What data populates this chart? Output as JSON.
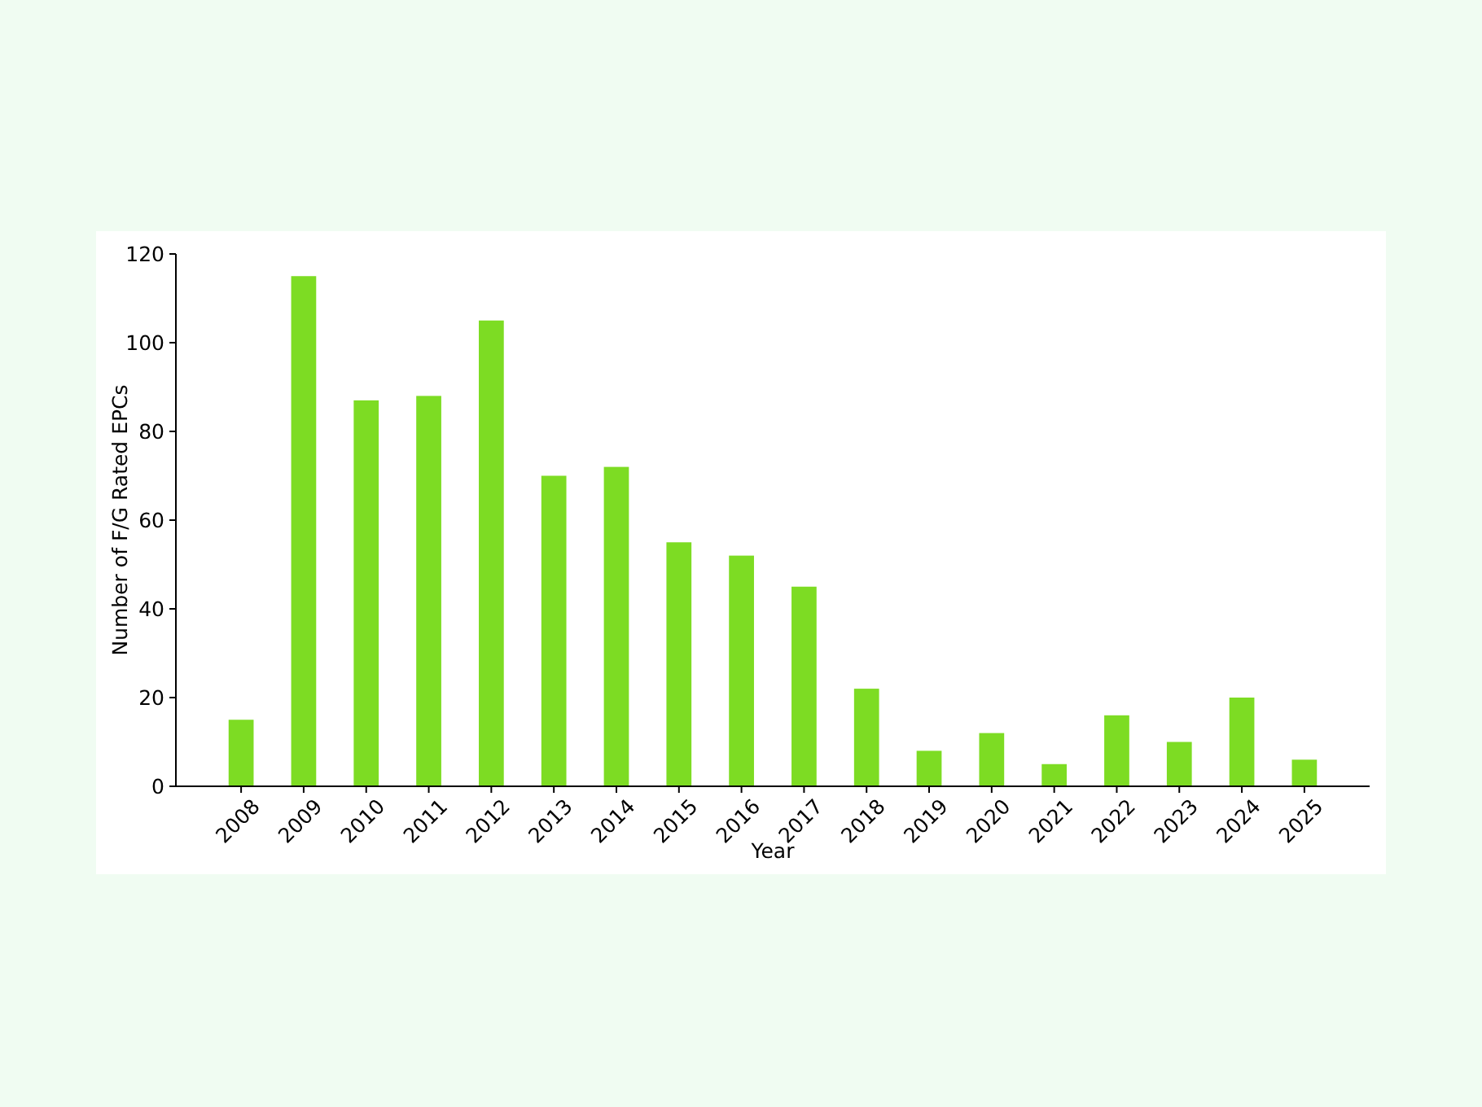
{
  "chart_data": {
    "type": "bar",
    "xlabel": "Year",
    "ylabel": "Number of F/G Rated EPCs",
    "categories": [
      "2008",
      "2009",
      "2010",
      "2011",
      "2012",
      "2013",
      "2014",
      "2015",
      "2016",
      "2017",
      "2018",
      "2019",
      "2020",
      "2021",
      "2022",
      "2023",
      "2024",
      "2025"
    ],
    "values": [
      15,
      115,
      87,
      88,
      105,
      70,
      72,
      55,
      52,
      45,
      22,
      8,
      12,
      5,
      16,
      10,
      20,
      6
    ],
    "color": "#7ddc23",
    "ylim": [
      0,
      120
    ],
    "yticks": [
      0,
      20,
      40,
      60,
      80,
      100,
      120
    ],
    "grid": false
  }
}
